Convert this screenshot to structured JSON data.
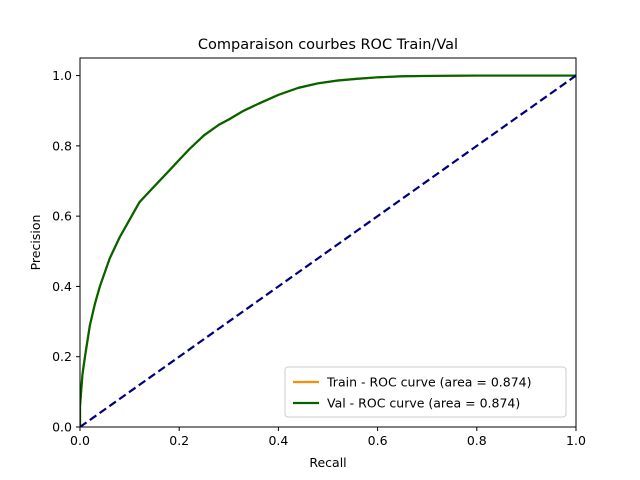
{
  "chart_data": {
    "type": "line",
    "title": "Comparaison courbes ROC Train/Val",
    "xlabel": "Recall",
    "ylabel": "Precision",
    "xlim": [
      0,
      1
    ],
    "ylim": [
      0,
      1.05
    ],
    "xticks": [
      0,
      0.2,
      0.4,
      0.6,
      0.8,
      1
    ],
    "yticks": [
      0,
      0.2,
      0.4,
      0.6,
      0.8,
      1
    ],
    "xtick_labels": [
      "0.0",
      "0.2",
      "0.4",
      "0.6",
      "0.8",
      "1.0"
    ],
    "ytick_labels": [
      "0.0",
      "0.2",
      "0.4",
      "0.6",
      "0.8",
      "1.0"
    ],
    "grid": false,
    "legend_position": "lower-right",
    "series": [
      {
        "name": "Train - ROC curve (area = 0.874)",
        "color": "#ff8c00",
        "style": "solid",
        "x": [
          0,
          0.0,
          0.005,
          0.01,
          0.02,
          0.03,
          0.04,
          0.05,
          0.06,
          0.08,
          0.1,
          0.12,
          0.14,
          0.16,
          0.18,
          0.2,
          0.22,
          0.25,
          0.28,
          0.3,
          0.33,
          0.36,
          0.4,
          0.44,
          0.48,
          0.52,
          0.56,
          0.6,
          0.65,
          0.7,
          0.8,
          0.9,
          1.0
        ],
        "y": [
          0,
          0.06,
          0.15,
          0.2,
          0.29,
          0.35,
          0.4,
          0.44,
          0.48,
          0.54,
          0.59,
          0.64,
          0.67,
          0.7,
          0.73,
          0.76,
          0.79,
          0.83,
          0.86,
          0.875,
          0.9,
          0.92,
          0.945,
          0.965,
          0.978,
          0.986,
          0.991,
          0.995,
          0.998,
          0.999,
          1.0,
          1.0,
          1.0
        ]
      },
      {
        "name": "Val - ROC curve (area = 0.874)",
        "color": "#006400",
        "style": "solid",
        "x": [
          0,
          0.0,
          0.005,
          0.01,
          0.02,
          0.03,
          0.04,
          0.05,
          0.06,
          0.08,
          0.1,
          0.12,
          0.14,
          0.16,
          0.18,
          0.2,
          0.22,
          0.25,
          0.28,
          0.3,
          0.33,
          0.36,
          0.4,
          0.44,
          0.48,
          0.52,
          0.56,
          0.6,
          0.65,
          0.7,
          0.8,
          0.9,
          1.0
        ],
        "y": [
          0,
          0.06,
          0.15,
          0.2,
          0.29,
          0.35,
          0.4,
          0.44,
          0.48,
          0.54,
          0.59,
          0.64,
          0.67,
          0.7,
          0.73,
          0.76,
          0.79,
          0.83,
          0.86,
          0.875,
          0.9,
          0.92,
          0.945,
          0.965,
          0.978,
          0.986,
          0.991,
          0.995,
          0.998,
          0.999,
          1.0,
          1.0,
          1.0
        ]
      }
    ],
    "reference_line": {
      "color": "#000080",
      "style": "dashed",
      "x": [
        0,
        1
      ],
      "y": [
        0,
        1
      ]
    }
  }
}
